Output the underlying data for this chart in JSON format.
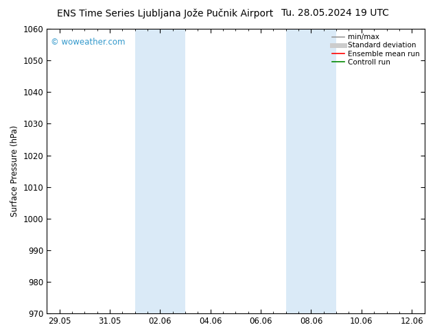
{
  "title_left": "ENS Time Series Ljubljana Jože Pučnik Airport",
  "title_right": "Tu. 28.05.2024 19 UTC",
  "ylabel": "Surface Pressure (hPa)",
  "ylim": [
    970,
    1060
  ],
  "yticks": [
    970,
    980,
    990,
    1000,
    1010,
    1020,
    1030,
    1040,
    1050,
    1060
  ],
  "xlim_start": -0.5,
  "xlim_end": 14.5,
  "xtick_positions": [
    0,
    2,
    4,
    6,
    8,
    10,
    12,
    14
  ],
  "xtick_labels": [
    "29.05",
    "31.05",
    "02.06",
    "04.06",
    "06.06",
    "08.06",
    "10.06",
    "12.06"
  ],
  "bg_color": "#ffffff",
  "plot_bg_color": "#ffffff",
  "shade_bands": [
    {
      "x_start": 3.0,
      "x_end": 5.0
    },
    {
      "x_start": 9.0,
      "x_end": 11.0
    }
  ],
  "shade_color": "#daeaf7",
  "watermark": "© woweather.com",
  "watermark_color": "#3399cc",
  "legend_items": [
    {
      "label": "min/max",
      "color": "#999999",
      "lw": 1.2,
      "style": "-"
    },
    {
      "label": "Standard deviation",
      "color": "#cccccc",
      "lw": 5,
      "style": "-"
    },
    {
      "label": "Ensemble mean run",
      "color": "#ff0000",
      "lw": 1.2,
      "style": "-"
    },
    {
      "label": "Controll run",
      "color": "#008800",
      "lw": 1.2,
      "style": "-"
    }
  ],
  "title_fontsize": 10,
  "tick_fontsize": 8.5,
  "ylabel_fontsize": 8.5,
  "border_color": "#000000"
}
